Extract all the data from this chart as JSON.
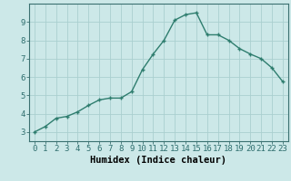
{
  "x": [
    0,
    1,
    2,
    3,
    4,
    5,
    6,
    7,
    8,
    9,
    10,
    11,
    12,
    13,
    14,
    15,
    16,
    17,
    18,
    19,
    20,
    21,
    22,
    23
  ],
  "y": [
    3.0,
    3.3,
    3.75,
    3.85,
    4.1,
    4.45,
    4.75,
    4.85,
    4.85,
    5.2,
    6.4,
    7.25,
    8.0,
    9.1,
    9.4,
    9.5,
    8.3,
    8.3,
    8.0,
    7.55,
    7.25,
    7.0,
    6.5,
    5.75
  ],
  "line_color": "#2e7d6e",
  "marker": "+",
  "marker_color": "#2e7d6e",
  "bg_color": "#cce8e8",
  "grid_color": "#aacfcf",
  "xlabel": "Humidex (Indice chaleur)",
  "xlim": [
    -0.5,
    23.5
  ],
  "ylim": [
    2.5,
    10.0
  ],
  "yticks": [
    3,
    4,
    5,
    6,
    7,
    8,
    9
  ],
  "xticks": [
    0,
    1,
    2,
    3,
    4,
    5,
    6,
    7,
    8,
    9,
    10,
    11,
    12,
    13,
    14,
    15,
    16,
    17,
    18,
    19,
    20,
    21,
    22,
    23
  ],
  "xtick_labels": [
    "0",
    "1",
    "2",
    "3",
    "4",
    "5",
    "6",
    "7",
    "8",
    "9",
    "10",
    "11",
    "12",
    "13",
    "14",
    "15",
    "16",
    "17",
    "18",
    "19",
    "20",
    "21",
    "22",
    "23"
  ],
  "label_fontsize": 7.5,
  "tick_fontsize": 6.5,
  "linewidth": 1.0,
  "markersize": 3.5
}
